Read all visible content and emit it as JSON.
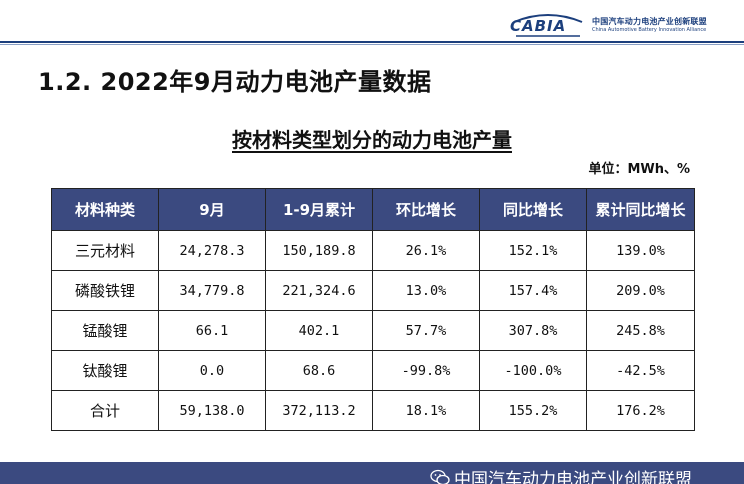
{
  "header": {
    "logo_word": "CABIA",
    "logo_cn": "中国汽车动力电池产业创新联盟",
    "logo_en": "China Automotive Battery Innovation Alliance"
  },
  "page_title": "1.2. 2022年9月动力电池产量数据",
  "table_title": "按材料类型划分的动力电池产量",
  "unit": "单位：MWh、%",
  "table": {
    "headers": [
      "材料种类",
      "9月",
      "1-9月累计",
      "环比增长",
      "同比增长",
      "累计同比增长"
    ],
    "rows": [
      [
        "三元材料",
        "24,278.3",
        "150,189.8",
        "26.1%",
        "152.1%",
        "139.0%"
      ],
      [
        "磷酸铁锂",
        "34,779.8",
        "221,324.6",
        "13.0%",
        "157.4%",
        "209.0%"
      ],
      [
        "锰酸锂",
        "66.1",
        "402.1",
        "57.7%",
        "307.8%",
        "245.8%"
      ],
      [
        "钛酸锂",
        "0.0",
        "68.6",
        "-99.8%",
        "-100.0%",
        "-42.5%"
      ],
      [
        "合计",
        "59,138.0",
        "372,113.2",
        "18.1%",
        "155.2%",
        "176.2%"
      ]
    ]
  },
  "footer": {
    "text": "中国汽车动力电池产业创新联盟",
    "icon": "wechat-icon"
  },
  "colors": {
    "brand_blue": "#1c3f7d",
    "table_header": "#3b4a80"
  }
}
